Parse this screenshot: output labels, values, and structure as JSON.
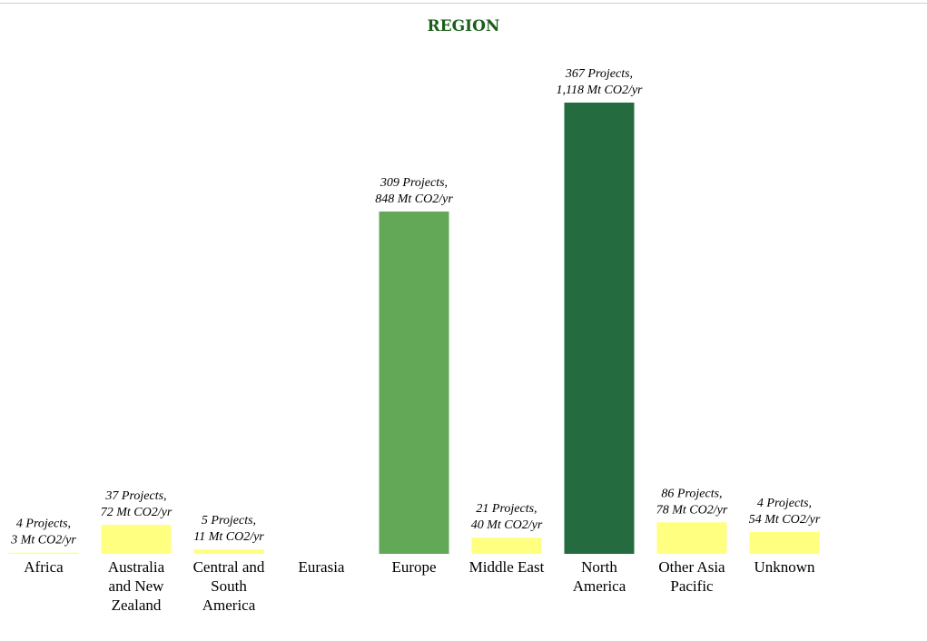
{
  "chart_data": {
    "type": "bar",
    "title": "REGION",
    "xlabel": "",
    "ylabel": "",
    "ylim": [
      0,
      1200
    ],
    "grid": false,
    "legend": "none",
    "categories": [
      "Africa",
      "Australia and New Zealand",
      "Central and South America",
      "Eurasia",
      "Europe",
      "Middle East",
      "North America",
      "Other Asia Pacific",
      "Unknown"
    ],
    "category_lines": [
      [
        "Africa"
      ],
      [
        "Australia",
        "and New",
        "Zealand"
      ],
      [
        "Central and",
        "South",
        "America"
      ],
      [
        "Eurasia"
      ],
      [
        "Europe"
      ],
      [
        "Middle East"
      ],
      [
        "North",
        "America"
      ],
      [
        "Other Asia",
        "Pacific"
      ],
      [
        "Unknown"
      ]
    ],
    "values": [
      3,
      72,
      11,
      0,
      848,
      40,
      1118,
      78,
      54
    ],
    "projects": [
      4,
      37,
      5,
      0,
      309,
      21,
      367,
      86,
      4
    ],
    "data_labels": [
      [
        "4 Projects,",
        "3 Mt CO2/yr"
      ],
      [
        "37 Projects,",
        "72 Mt CO2/yr"
      ],
      [
        "5 Projects,",
        "11 Mt CO2/yr"
      ],
      [],
      [
        "309 Projects,",
        "848 Mt CO2/yr"
      ],
      [
        "21 Projects,",
        "40 Mt CO2/yr"
      ],
      [
        "367 Projects,",
        "1,118 Mt CO2/yr"
      ],
      [
        "86 Projects,",
        "78 Mt CO2/yr"
      ],
      [
        "4 Projects,",
        "54 Mt CO2/yr"
      ]
    ],
    "bar_colors": [
      "#ffff80",
      "#ffff80",
      "#ffff80",
      "#ffff80",
      "#62a856",
      "#ffff80",
      "#246b40",
      "#ffff80",
      "#ffff80"
    ],
    "title_color": "#1a5e1a"
  }
}
